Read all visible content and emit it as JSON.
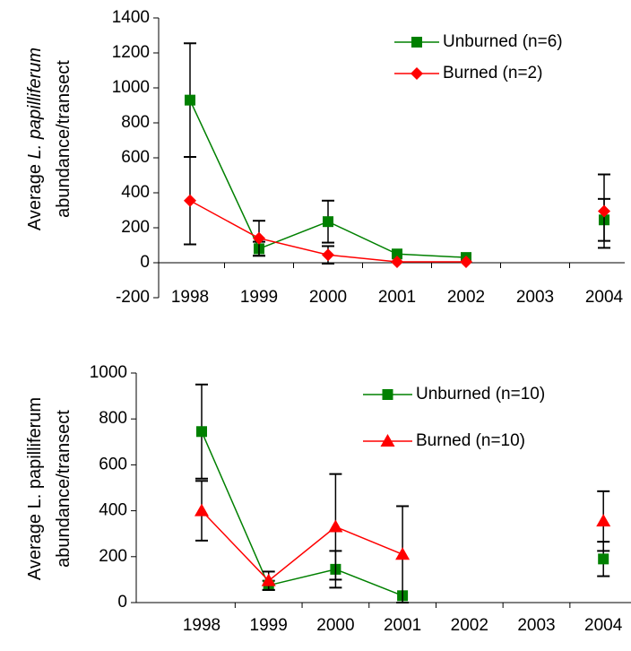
{
  "chart_data": [
    {
      "type": "line",
      "ylabel": [
        [
          {
            "text": "Average "
          },
          {
            "text": "L. papilliferum",
            "italic": true
          }
        ],
        [
          {
            "text": "abundance/transect"
          }
        ]
      ],
      "categories": [
        "1998",
        "1999",
        "2000",
        "2001",
        "2002",
        "2003",
        "2004"
      ],
      "ylim": [
        -200,
        1400
      ],
      "yticks": [
        -200,
        0,
        200,
        400,
        600,
        800,
        1000,
        1200,
        1400
      ],
      "legend": "upper right",
      "series": [
        {
          "name": "Unburned (n=6)",
          "color": "#008000",
          "marker": "square",
          "values": [
            930,
            80,
            235,
            50,
            30,
            null,
            245
          ],
          "errors": [
            325,
            40,
            120,
            null,
            null,
            null,
            120
          ]
        },
        {
          "name": "Burned (n=2)",
          "color": "#ff0000",
          "marker": "diamond",
          "values": [
            355,
            140,
            45,
            5,
            5,
            null,
            295
          ],
          "errors": [
            250,
            100,
            50,
            null,
            null,
            null,
            210
          ]
        }
      ]
    },
    {
      "type": "line",
      "ylabel": [
        [
          {
            "text": "Average L. papilliferum"
          }
        ],
        [
          {
            "text": "abundance/transect"
          }
        ]
      ],
      "categories": [
        "1998",
        "1999",
        "2000",
        "2001",
        "2002",
        "2003",
        "2004"
      ],
      "ylim": [
        0,
        1000
      ],
      "yticks": [
        0,
        200,
        400,
        600,
        800,
        1000
      ],
      "legend": "upper right",
      "series": [
        {
          "name": "Unburned (n=10)",
          "color": "#008000",
          "marker": "square",
          "values": [
            745,
            75,
            145,
            30,
            null,
            null,
            190
          ],
          "errors": [
            205,
            20,
            80,
            null,
            null,
            null,
            75
          ]
        },
        {
          "name": "Burned (n=10)",
          "color": "#ff0000",
          "marker": "triangle",
          "values": [
            400,
            95,
            330,
            210,
            null,
            null,
            355
          ],
          "errors": [
            130,
            40,
            230,
            210,
            null,
            null,
            130
          ]
        }
      ]
    }
  ]
}
